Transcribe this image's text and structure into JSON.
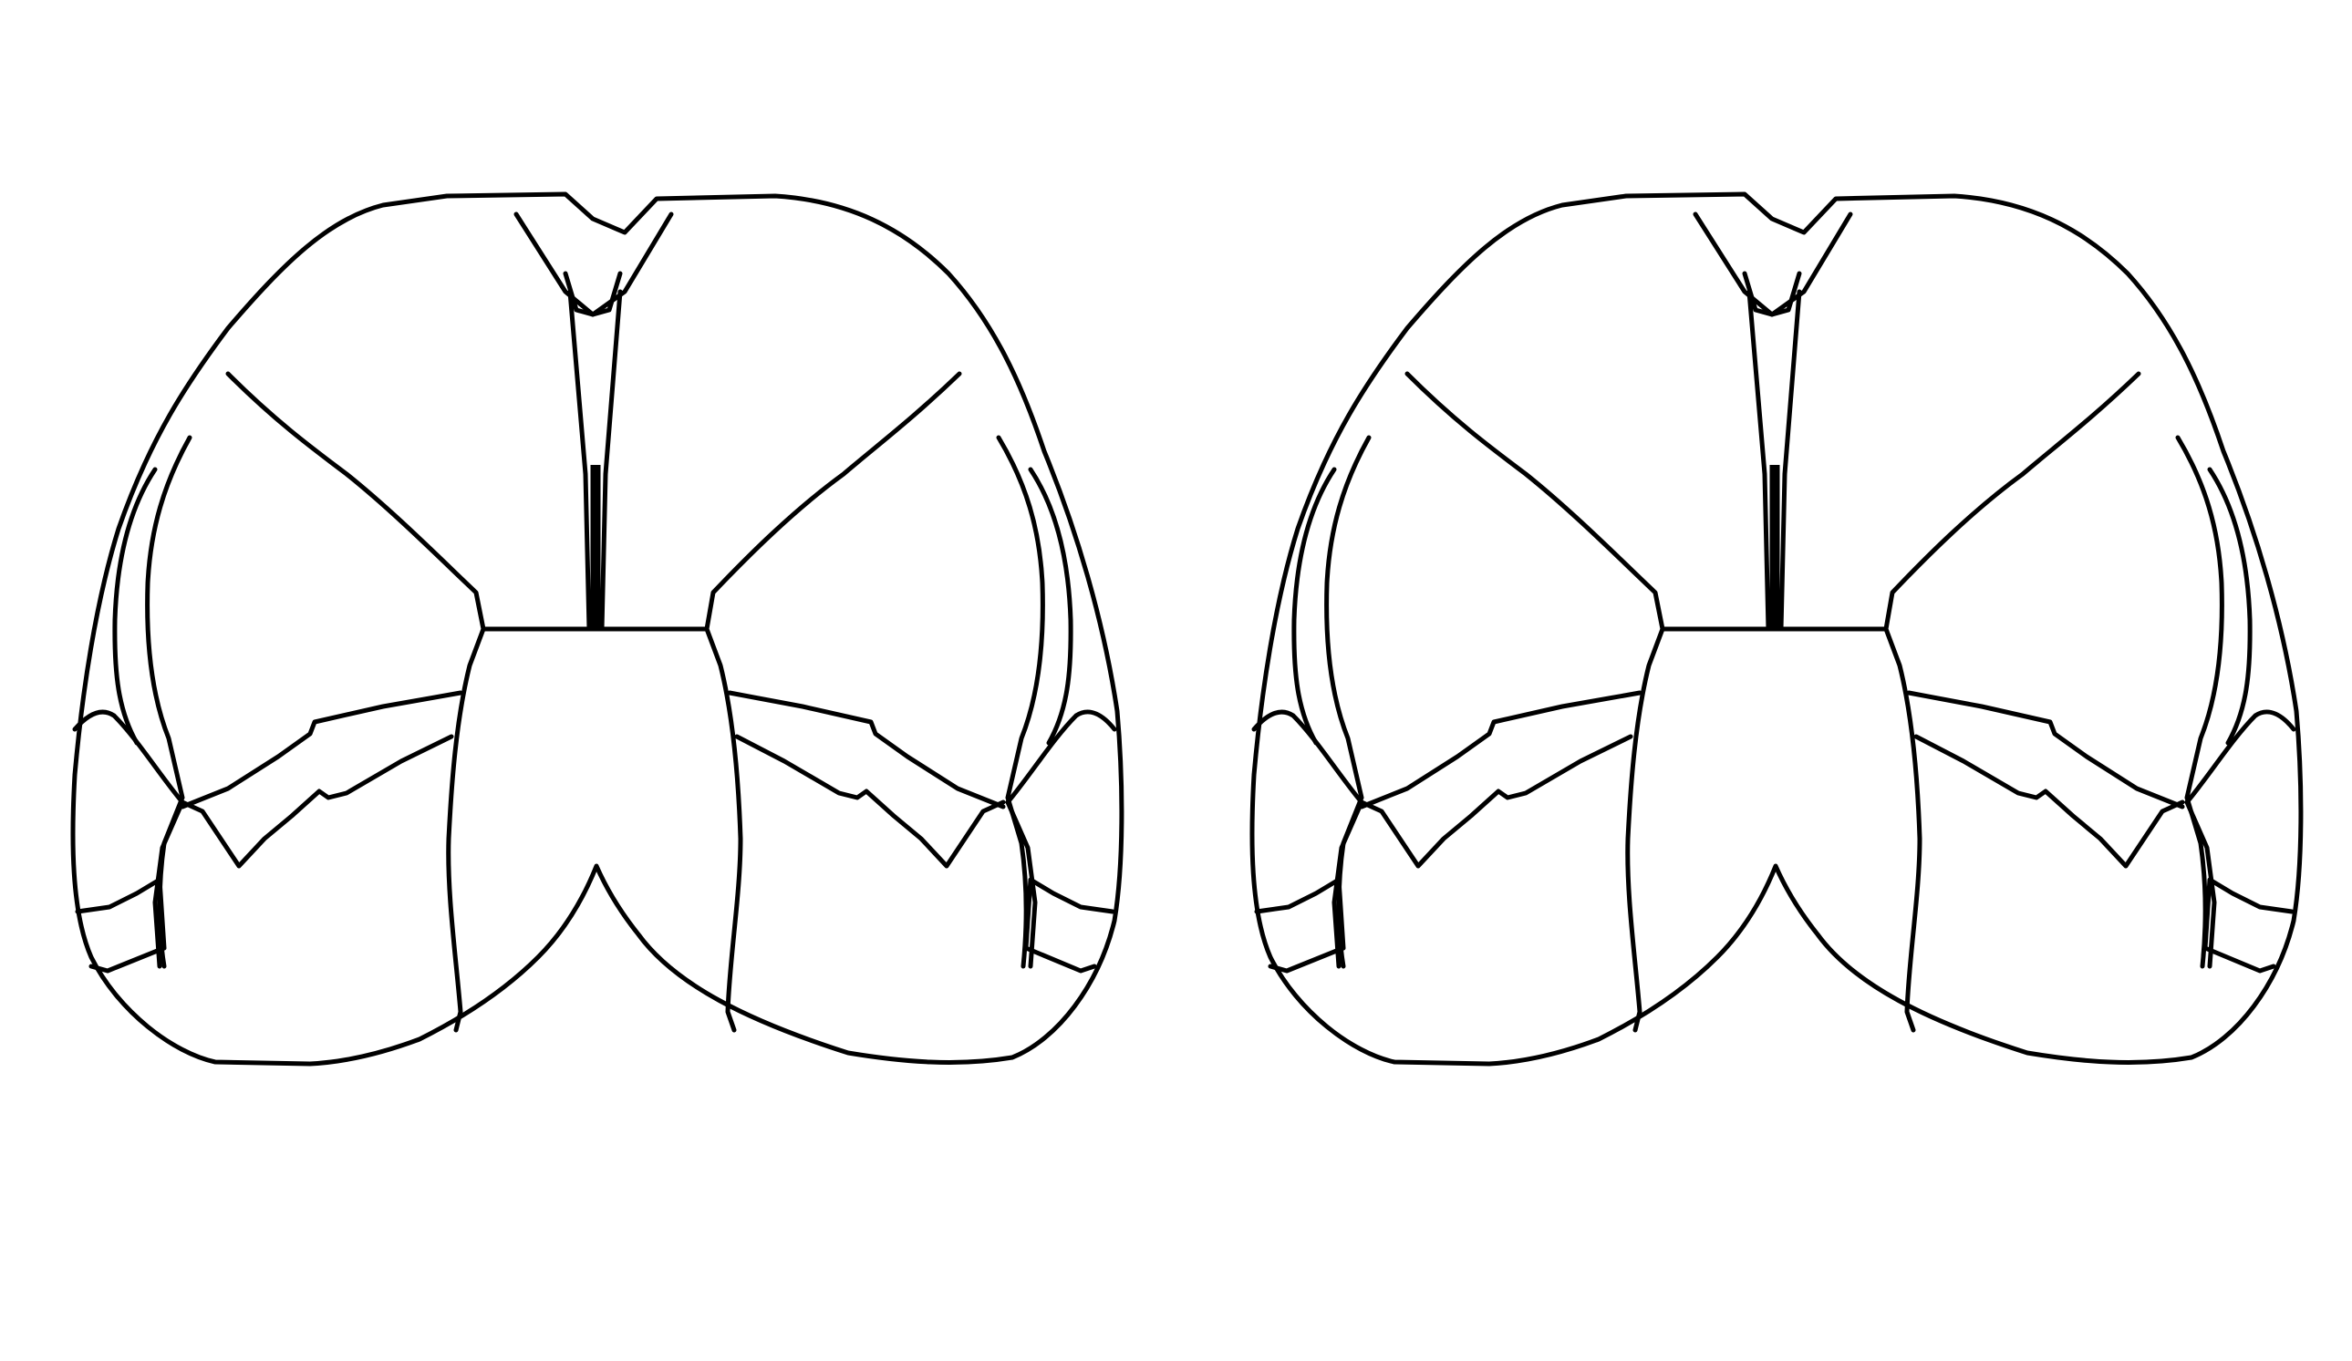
{
  "diagram": {
    "panel_count": 2,
    "background_color": "#ffffff",
    "line_color": "#000000",
    "panels": [
      {
        "name": "left-panel"
      },
      {
        "name": "right-panel"
      }
    ]
  }
}
